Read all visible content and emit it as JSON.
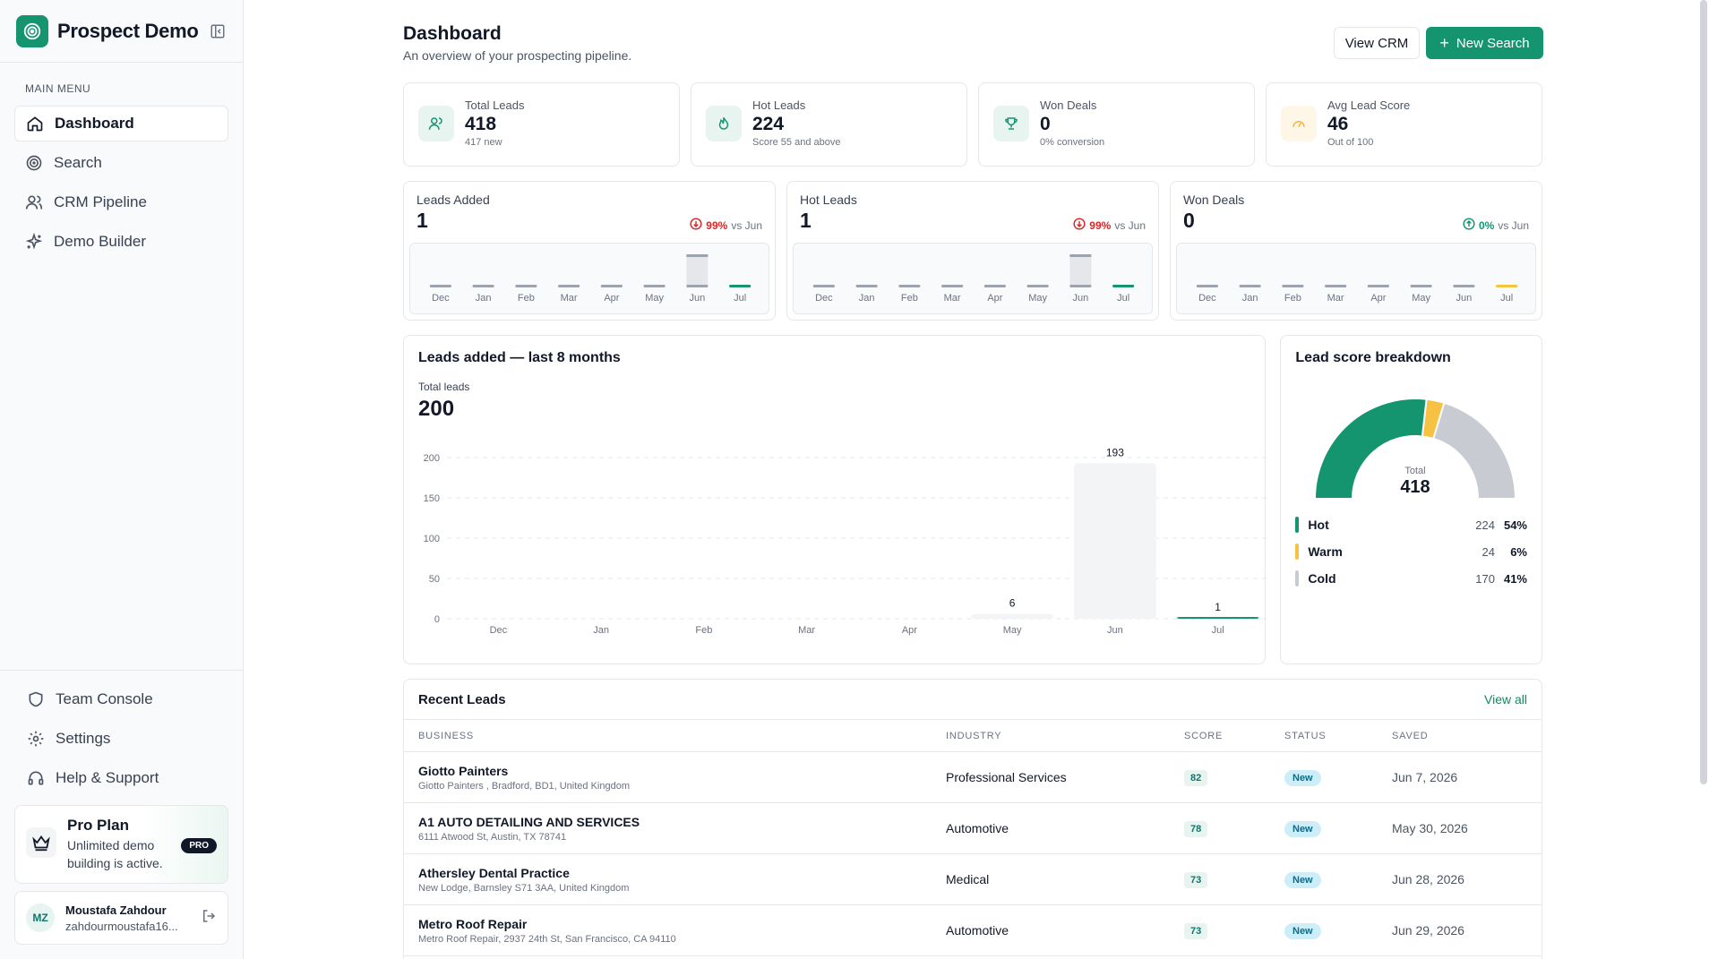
{
  "app": {
    "name": "Prospect Demo"
  },
  "sidebar": {
    "menu_title": "MAIN MENU",
    "items": [
      {
        "label": "Dashboard",
        "icon": "home-icon",
        "active": true
      },
      {
        "label": "Search",
        "icon": "target-icon"
      },
      {
        "label": "CRM Pipeline",
        "icon": "users-icon"
      },
      {
        "label": "Demo Builder",
        "icon": "sparkles-icon"
      }
    ],
    "bottom_items": [
      {
        "label": "Team Console",
        "icon": "shield-icon"
      },
      {
        "label": "Settings",
        "icon": "gear-icon"
      },
      {
        "label": "Help & Support",
        "icon": "headphones-icon"
      }
    ],
    "plan": {
      "title": "Pro Plan",
      "desc": "Unlimited demo building is active.",
      "badge": "PRO"
    },
    "user": {
      "initials": "MZ",
      "name": "Moustafa Zahdour",
      "email": "zahdourmoustafa16..."
    }
  },
  "header": {
    "title": "Dashboard",
    "subtitle": "An overview of your prospecting pipeline.",
    "view_crm": "View CRM",
    "new_search": "New Search"
  },
  "stats": [
    {
      "label": "Total Leads",
      "value": "418",
      "sub": "417 new",
      "icon": "users-icon",
      "color": "#14946f",
      "bg": "#e7f4ef"
    },
    {
      "label": "Hot Leads",
      "value": "224",
      "sub": "Score 55 and above",
      "icon": "flame-icon",
      "color": "#14946f",
      "bg": "#e7f4ef"
    },
    {
      "label": "Won Deals",
      "value": "0",
      "sub": "0% conversion",
      "icon": "trophy-icon",
      "color": "#14946f",
      "bg": "#e7f4ef"
    },
    {
      "label": "Avg Lead Score",
      "value": "46",
      "sub": "Out of 100",
      "icon": "gauge-icon",
      "color": "#f5b640",
      "bg": "#fef6e7"
    }
  ],
  "trends": [
    {
      "label": "Leads Added",
      "value": "1",
      "pct": "99%",
      "vs": "vs Jun",
      "direction": "down",
      "delta_color": "#dc2626",
      "highlight": "#14946f",
      "months": [
        "Dec",
        "Jan",
        "Feb",
        "Mar",
        "Apr",
        "May",
        "Jun",
        "Jul"
      ],
      "values": [
        0,
        0,
        0,
        0,
        0,
        6,
        193,
        1
      ]
    },
    {
      "label": "Hot Leads",
      "value": "1",
      "pct": "99%",
      "vs": "vs Jun",
      "direction": "down",
      "delta_color": "#dc2626",
      "highlight": "#14946f",
      "months": [
        "Dec",
        "Jan",
        "Feb",
        "Mar",
        "Apr",
        "May",
        "Jun",
        "Jul"
      ],
      "values": [
        0,
        0,
        0,
        0,
        0,
        0,
        100,
        1
      ]
    },
    {
      "label": "Won Deals",
      "value": "0",
      "pct": "0%",
      "vs": "vs Jun",
      "direction": "up",
      "delta_color": "#14946f",
      "highlight": "#f5c542",
      "months": [
        "Dec",
        "Jan",
        "Feb",
        "Mar",
        "Apr",
        "May",
        "Jun",
        "Jul"
      ],
      "values": [
        0,
        0,
        0,
        0,
        0,
        0,
        0,
        0
      ]
    }
  ],
  "big_chart": {
    "title": "Leads added — last 8 months",
    "sub_label": "Total leads",
    "total": "200"
  },
  "chart_data": {
    "type": "bar",
    "categories": [
      "Dec",
      "Jan",
      "Feb",
      "Mar",
      "Apr",
      "May",
      "Jun",
      "Jul"
    ],
    "values": [
      0,
      0,
      0,
      0,
      0,
      6,
      193,
      1
    ],
    "data_labels": [
      "",
      "",
      "",
      "",
      "",
      "6",
      "193",
      "1"
    ],
    "ylim": [
      0,
      200
    ],
    "yticks": [
      0,
      50,
      100,
      150,
      200
    ],
    "grid": true,
    "colors": {
      "bar": "#f3f4f6",
      "last": "#14946f"
    }
  },
  "breakdown": {
    "title": "Lead score breakdown",
    "total_label": "Total",
    "total": "418",
    "items": [
      {
        "name": "Hot",
        "count": "224",
        "pct": "54%",
        "value": 224,
        "color": "#14946f"
      },
      {
        "name": "Warm",
        "count": "24",
        "pct": "6%",
        "value": 24,
        "color": "#f7c244"
      },
      {
        "name": "Cold",
        "count": "170",
        "pct": "41%",
        "value": 170,
        "color": "#c8cbd2"
      }
    ]
  },
  "recent": {
    "title": "Recent Leads",
    "view_all": "View all",
    "columns": [
      "BUSINESS",
      "INDUSTRY",
      "SCORE",
      "STATUS",
      "SAVED"
    ],
    "rows": [
      {
        "name": "Giotto Painters",
        "address": "Giotto Painters , Bradford, BD1, United Kingdom",
        "industry": "Professional Services",
        "score": "82",
        "status": "New",
        "saved": "Jun 7, 2026"
      },
      {
        "name": "A1 AUTO DETAILING AND SERVICES",
        "address": "6111 Atwood St, Austin, TX 78741",
        "industry": "Automotive",
        "score": "78",
        "status": "New",
        "saved": "May 30, 2026"
      },
      {
        "name": "Athersley Dental Practice",
        "address": "New Lodge, Barnsley S71 3AA, United Kingdom",
        "industry": "Medical",
        "score": "73",
        "status": "New",
        "saved": "Jun 28, 2026"
      },
      {
        "name": "Metro Roof Repair",
        "address": "Metro Roof Repair, 2937 24th St, San Francisco, CA 94110",
        "industry": "Automotive",
        "score": "73",
        "status": "New",
        "saved": "Jun 29, 2026"
      }
    ]
  }
}
